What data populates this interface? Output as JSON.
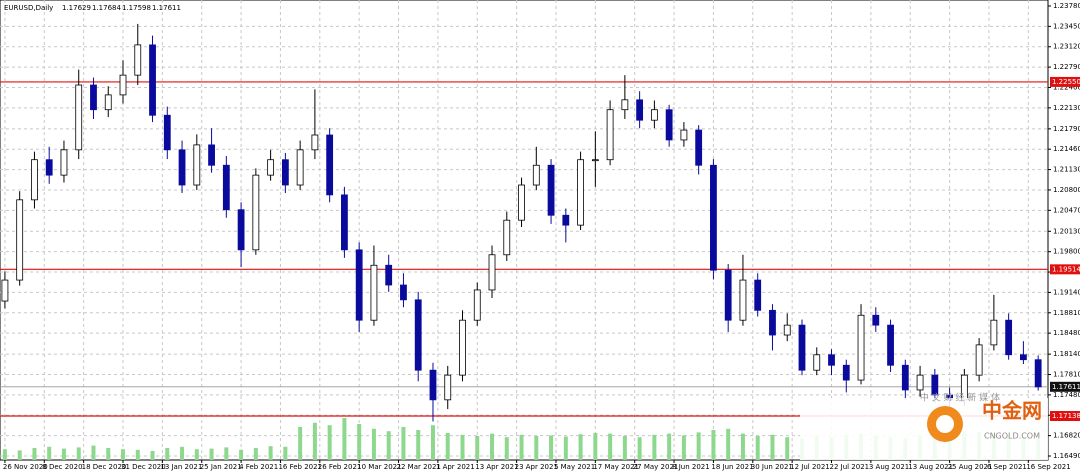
{
  "chart_data": {
    "type": "candlestick",
    "title": "EURUSD,Daily",
    "ohlc": [
      1.17629,
      1.17684,
      1.17598,
      1.17611
    ],
    "x": [
      0,
      3,
      6,
      9,
      12,
      15,
      18,
      21,
      24,
      27,
      30,
      33,
      36,
      39,
      42,
      45,
      48,
      51,
      54,
      57,
      60,
      63,
      66,
      69,
      72,
      75,
      78,
      81,
      84,
      87,
      90,
      93,
      96,
      99,
      102,
      105,
      108,
      111,
      114,
      117,
      120,
      123,
      126,
      129,
      132,
      135,
      138,
      141,
      144,
      147,
      150,
      153,
      156,
      159,
      162,
      165,
      168,
      171,
      174,
      177,
      180,
      183,
      186,
      189,
      192,
      195,
      198,
      201,
      204,
      207,
      210
    ],
    "candles": [
      [
        1.19,
        1.1948,
        1.1888,
        1.1934
      ],
      [
        1.1934,
        1.2078,
        1.1925,
        1.2064
      ],
      [
        1.2064,
        1.2142,
        1.205,
        1.2129
      ],
      [
        1.2129,
        1.215,
        1.209,
        1.2104
      ],
      [
        1.2104,
        1.216,
        1.2092,
        1.2145
      ],
      [
        1.2145,
        1.2275,
        1.213,
        1.225
      ],
      [
        1.225,
        1.2262,
        1.2195,
        1.221
      ],
      [
        1.221,
        1.2248,
        1.2198,
        1.2234
      ],
      [
        1.2234,
        1.229,
        1.222,
        1.2266
      ],
      [
        1.2266,
        1.2349,
        1.225,
        1.2315
      ],
      [
        1.2315,
        1.233,
        1.219,
        1.2201
      ],
      [
        1.2201,
        1.2215,
        1.213,
        1.2145
      ],
      [
        1.2145,
        1.216,
        1.2075,
        1.2088
      ],
      [
        1.2088,
        1.217,
        1.208,
        1.2153
      ],
      [
        1.2153,
        1.218,
        1.2108,
        1.212
      ],
      [
        1.212,
        1.2135,
        1.2035,
        1.2048
      ],
      [
        1.2048,
        1.206,
        1.1955,
        1.1983
      ],
      [
        1.1983,
        1.2115,
        1.1975,
        1.2104
      ],
      [
        1.2104,
        1.2145,
        1.2095,
        1.2129
      ],
      [
        1.2129,
        1.214,
        1.2075,
        1.2088
      ],
      [
        1.2088,
        1.216,
        1.208,
        1.2145
      ],
      [
        1.2145,
        1.2243,
        1.213,
        1.2169
      ],
      [
        1.2169,
        1.218,
        1.206,
        1.2072
      ],
      [
        1.2072,
        1.2085,
        1.197,
        1.1983
      ],
      [
        1.1983,
        1.1995,
        1.185,
        1.1869
      ],
      [
        1.1869,
        1.199,
        1.186,
        1.1958
      ],
      [
        1.1958,
        1.1975,
        1.1915,
        1.1926
      ],
      [
        1.1926,
        1.1945,
        1.189,
        1.1902
      ],
      [
        1.1902,
        1.1915,
        1.177,
        1.1788
      ],
      [
        1.1788,
        1.18,
        1.1705,
        1.174
      ],
      [
        1.174,
        1.1795,
        1.1725,
        1.178
      ],
      [
        1.178,
        1.1885,
        1.177,
        1.1869
      ],
      [
        1.1869,
        1.193,
        1.186,
        1.1918
      ],
      [
        1.1918,
        1.199,
        1.1905,
        1.1975
      ],
      [
        1.1975,
        1.2045,
        1.1965,
        1.2031
      ],
      [
        1.2031,
        1.21,
        1.202,
        1.2088
      ],
      [
        1.2088,
        1.215,
        1.208,
        1.212
      ],
      [
        1.212,
        1.213,
        1.2025,
        1.2039
      ],
      [
        1.2039,
        1.205,
        1.1995,
        1.2023
      ],
      [
        1.2023,
        1.2142,
        1.2015,
        1.2129
      ],
      [
        1.2129,
        1.2175,
        1.2085,
        1.2129
      ],
      [
        1.2129,
        1.2225,
        1.212,
        1.221
      ],
      [
        1.221,
        1.2266,
        1.2195,
        1.2226
      ],
      [
        1.2226,
        1.224,
        1.218,
        1.2193
      ],
      [
        1.2193,
        1.2225,
        1.218,
        1.221
      ],
      [
        1.221,
        1.2218,
        1.215,
        1.2161
      ],
      [
        1.2161,
        1.219,
        1.215,
        1.2177
      ],
      [
        1.2177,
        1.2185,
        1.2105,
        1.212
      ],
      [
        1.212,
        1.213,
        1.1935,
        1.195
      ],
      [
        1.195,
        1.196,
        1.185,
        1.1869
      ],
      [
        1.1869,
        1.1975,
        1.186,
        1.1934
      ],
      [
        1.1934,
        1.1945,
        1.1875,
        1.1885
      ],
      [
        1.1885,
        1.1895,
        1.182,
        1.1845
      ],
      [
        1.1845,
        1.188,
        1.1835,
        1.1861
      ],
      [
        1.1861,
        1.187,
        1.178,
        1.1788
      ],
      [
        1.1788,
        1.1825,
        1.178,
        1.1813
      ],
      [
        1.1813,
        1.1822,
        1.178,
        1.1796
      ],
      [
        1.1796,
        1.1805,
        1.1752,
        1.1772
      ],
      [
        1.1772,
        1.1895,
        1.1765,
        1.1877
      ],
      [
        1.1877,
        1.189,
        1.185,
        1.1861
      ],
      [
        1.1861,
        1.187,
        1.1785,
        1.1796
      ],
      [
        1.1796,
        1.1805,
        1.174,
        1.1756
      ],
      [
        1.1756,
        1.1795,
        1.1745,
        1.178
      ],
      [
        1.178,
        1.179,
        1.1735,
        1.1748
      ],
      [
        1.1748,
        1.176,
        1.1705,
        1.174
      ],
      [
        1.174,
        1.179,
        1.173,
        1.178
      ],
      [
        1.178,
        1.184,
        1.177,
        1.1829
      ],
      [
        1.1829,
        1.191,
        1.182,
        1.1869
      ],
      [
        1.1869,
        1.188,
        1.1805,
        1.1813
      ],
      [
        1.1813,
        1.1835,
        1.1798,
        1.1805
      ],
      [
        1.1805,
        1.1812,
        1.1755,
        1.1761
      ]
    ],
    "volume": [
      18,
      16,
      20,
      22,
      19,
      21,
      24,
      20,
      18,
      17,
      15,
      20,
      22,
      18,
      19,
      21,
      17,
      20,
      23,
      22,
      55,
      62,
      58,
      70,
      60,
      52,
      48,
      55,
      50,
      58,
      45,
      42,
      40,
      44,
      38,
      42,
      40,
      41,
      39,
      43,
      45,
      44,
      40,
      38,
      42,
      44,
      41,
      46,
      50,
      52,
      44,
      40,
      42,
      38,
      36,
      40,
      38,
      42,
      44,
      40,
      38,
      36,
      40,
      42,
      44,
      48,
      46,
      42,
      40,
      38,
      35
    ],
    "vlim": [
      0,
      100
    ],
    "up_color": "#ffffff",
    "down_color": "#0a0a9c",
    "volume_color": "#8ed88e",
    "level_color": "#e01010",
    "xlim": [
      -1,
      212
    ],
    "xticks": [
      {
        "value": 0,
        "label": "26 Nov 2020"
      },
      {
        "value": 8,
        "label": "8 Dec 2020"
      },
      {
        "value": 16,
        "label": "18 Dec 2020"
      },
      {
        "value": 24,
        "label": "31 Dec 2020"
      },
      {
        "value": 32,
        "label": "13 Jan 2021"
      },
      {
        "value": 40,
        "label": "25 Jan 2021"
      },
      {
        "value": 48,
        "label": "4 Feb 2021"
      },
      {
        "value": 56,
        "label": "16 Feb 2021"
      },
      {
        "value": 64,
        "label": "26 Feb 2021"
      },
      {
        "value": 72,
        "label": "10 Mar 2021"
      },
      {
        "value": 80,
        "label": "22 Mar 2021"
      },
      {
        "value": 88,
        "label": "1 Apr 2021"
      },
      {
        "value": 96,
        "label": "13 Apr 2021"
      },
      {
        "value": 104,
        "label": "23 Apr 2021"
      },
      {
        "value": 112,
        "label": "5 May 2021"
      },
      {
        "value": 120,
        "label": "17 May 2021"
      },
      {
        "value": 128,
        "label": "27 May 2021"
      },
      {
        "value": 136,
        "label": "8 Jun 2021"
      },
      {
        "value": 144,
        "label": "18 Jun 2021"
      },
      {
        "value": 152,
        "label": "30 Jun 2021"
      },
      {
        "value": 160,
        "label": "12 Jul 2021"
      },
      {
        "value": 168,
        "label": "22 Jul 2021"
      },
      {
        "value": 176,
        "label": "3 Aug 2021"
      },
      {
        "value": 184,
        "label": "13 Aug 2021"
      },
      {
        "value": 192,
        "label": "25 Aug 2021"
      },
      {
        "value": 200,
        "label": "6 Sep 2021"
      },
      {
        "value": 208,
        "label": "16 Sep 2021"
      }
    ],
    "ylim": [
      1.1649,
      1.2378
    ],
    "yticks": [
      {
        "value": 1.2378,
        "label": "1.23780"
      },
      {
        "value": 1.2345,
        "label": "1.23450"
      },
      {
        "value": 1.2312,
        "label": "1.23120"
      },
      {
        "value": 1.2279,
        "label": "1.22790"
      },
      {
        "value": 1.2246,
        "label": "1.22460"
      },
      {
        "value": 1.2213,
        "label": "1.22130"
      },
      {
        "value": 1.2179,
        "label": "1.21790"
      },
      {
        "value": 1.2146,
        "label": "1.21460"
      },
      {
        "value": 1.2113,
        "label": "1.21130"
      },
      {
        "value": 1.208,
        "label": "1.20800"
      },
      {
        "value": 1.2047,
        "label": "1.20470"
      },
      {
        "value": 1.2013,
        "label": "1.20130"
      },
      {
        "value": 1.198,
        "label": "1.19800"
      },
      {
        "value": 1.1947,
        "label": "1.19470"
      },
      {
        "value": 1.1914,
        "label": "1.19140"
      },
      {
        "value": 1.1881,
        "label": "1.18810"
      },
      {
        "value": 1.1848,
        "label": "1.18480"
      },
      {
        "value": 1.1814,
        "label": "1.18140"
      },
      {
        "value": 1.1781,
        "label": "1.17810"
      },
      {
        "value": 1.1748,
        "label": "1.17480"
      },
      {
        "value": 1.1715,
        "label": "1.17150"
      },
      {
        "value": 1.1682,
        "label": "1.16820"
      },
      {
        "value": 1.1649,
        "label": "1.16490"
      }
    ],
    "grid": true,
    "levels": [
      {
        "value": 1.2255,
        "label": "1.22550"
      },
      1.19514,
      1.17138
    ],
    "current_price": 1.17611
  },
  "watermark": {
    "brand": "中金网",
    "site": "CNGOLD.COM",
    "tagline": "中 文 财 经 新 媒 体"
  }
}
